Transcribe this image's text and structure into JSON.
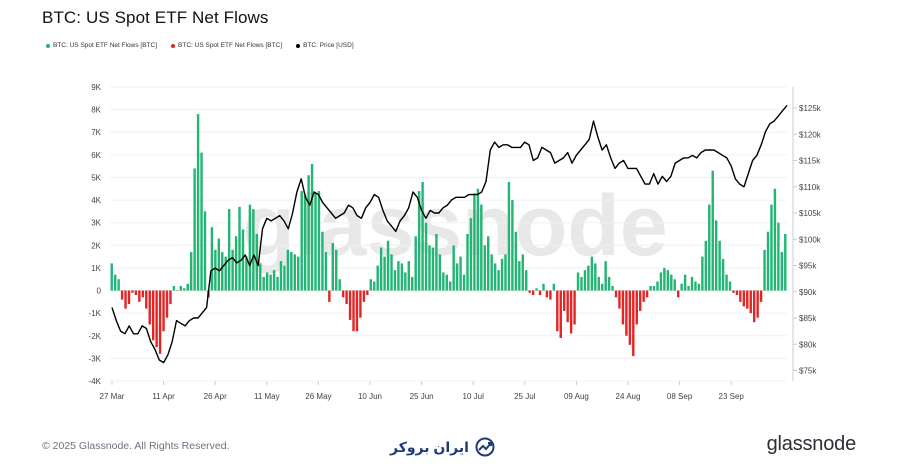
{
  "title": "BTC: US Spot ETF Net Flows",
  "legend": [
    {
      "label": "BTC: US Spot ETF Net Flows [BTC]",
      "color": "#22b573"
    },
    {
      "label": "BTC: US Spot ETF Net Flows [BTC]",
      "color": "#e02626"
    },
    {
      "label": "BTC: Price [USD]",
      "color": "#000000"
    }
  ],
  "watermark": "glassnode",
  "footer": {
    "copyright": "© 2025 Glassnode. All Rights Reserved.",
    "brand": "glassnode",
    "center_brand": "ایران بروکر"
  },
  "chart_data": {
    "type": "bar",
    "colors": {
      "positive": "#22b573",
      "negative": "#e02626",
      "price": "#000000"
    },
    "x_tick_labels": [
      "27 Mar",
      "11 Apr",
      "26 Apr",
      "11 May",
      "26 May",
      "10 Jun",
      "25 Jun",
      "10 Jul",
      "25 Jul",
      "09 Aug",
      "24 Aug",
      "08 Sep",
      "23 Sep"
    ],
    "y_left": {
      "ticks": [
        -4000,
        -3000,
        -2000,
        -1000,
        0,
        1000,
        2000,
        3000,
        4000,
        5000,
        6000,
        7000,
        8000,
        9000
      ],
      "tick_labels": [
        "-4K",
        "-3K",
        "-2K",
        "-1K",
        "0",
        "1K",
        "2K",
        "3K",
        "4K",
        "5K",
        "6K",
        "7K",
        "8K",
        "9K"
      ],
      "range": [
        -4000,
        9000
      ]
    },
    "y_right": {
      "ticks": [
        75000,
        80000,
        85000,
        90000,
        95000,
        100000,
        105000,
        110000,
        115000,
        120000,
        125000
      ],
      "tick_labels": [
        "$75k",
        "$80k",
        "$85k",
        "$90k",
        "$95k",
        "$100k",
        "$105k",
        "$110k",
        "$115k",
        "$120k",
        "$125k"
      ],
      "range": [
        73000,
        129000
      ]
    },
    "series": [
      {
        "type": "bar",
        "values": [
          1200,
          700,
          500,
          -400,
          -800,
          -600,
          -100,
          -200,
          -500,
          -300,
          -800,
          -1500,
          -2200,
          -2500,
          -2800,
          -1800,
          -1200,
          -600,
          200,
          0,
          200,
          100,
          300,
          1700,
          5400,
          7800,
          6100,
          3500,
          -300,
          2800,
          1800,
          2300,
          1700,
          1500,
          3600,
          1800,
          2400,
          3700,
          2700,
          1500,
          3800,
          3600,
          2500,
          1200,
          600,
          800,
          700,
          900,
          600,
          1300,
          1100,
          1800,
          1700,
          1600,
          1500,
          4400,
          4200,
          5100,
          5600,
          4300,
          4400,
          2600,
          1700,
          -500,
          2100,
          1800,
          500,
          -300,
          -600,
          -1300,
          -1800,
          -1800,
          -1200,
          -500,
          -200,
          500,
          400,
          1100,
          1900,
          1500,
          2200,
          1600,
          900,
          1300,
          1200,
          800,
          1300,
          600,
          2400,
          4400,
          4800,
          3000,
          2000,
          1900,
          2500,
          1600,
          800,
          700,
          400,
          2000,
          1200,
          1500,
          700,
          2500,
          3200,
          4300,
          4500,
          3800,
          2000,
          2400,
          1600,
          1200,
          900,
          1400,
          1600,
          4800,
          4000,
          2600,
          1300,
          1600,
          900,
          -100,
          -200,
          100,
          -200,
          300,
          -300,
          -400,
          300,
          -1800,
          -2100,
          -900,
          -1400,
          -1900,
          -1500,
          800,
          600,
          900,
          1100,
          1500,
          1200,
          600,
          300,
          1300,
          600,
          200,
          -300,
          -800,
          -1500,
          -2000,
          -2400,
          -2900,
          -1500,
          -900,
          -500,
          -300,
          200,
          200,
          400,
          800,
          1000,
          900,
          700,
          500,
          -300,
          300,
          700,
          200,
          600,
          400,
          300,
          1500,
          2200,
          3800,
          5300,
          3100,
          2200,
          1400,
          700,
          400,
          -100,
          -200,
          -500,
          -700,
          -800,
          -1000,
          -1400,
          -1200,
          -500,
          1800,
          2600,
          3800,
          4500,
          3000,
          1700,
          2500
        ]
      },
      {
        "type": "line",
        "name": "BTC: Price [USD]",
        "values": [
          87000,
          84500,
          82500,
          82000,
          83500,
          82000,
          82000,
          83500,
          83000,
          80500,
          79000,
          77000,
          76500,
          78000,
          80500,
          84500,
          84000,
          83500,
          84500,
          85000,
          85000,
          86000,
          87000,
          94000,
          94500,
          94000,
          95000,
          96000,
          96500,
          95500,
          96000,
          97000,
          95000,
          97000,
          95000,
          102000,
          104000,
          103500,
          104000,
          104500,
          103500,
          102000,
          105000,
          109000,
          111500,
          108000,
          106500,
          109000,
          108500,
          107000,
          106000,
          105000,
          104000,
          104500,
          105000,
          106500,
          106000,
          104500,
          104000,
          106000,
          107000,
          108500,
          108000,
          105500,
          103500,
          102500,
          101500,
          103500,
          104500,
          106000,
          109000,
          108000,
          105500,
          104000,
          105500,
          105000,
          105000,
          106000,
          106500,
          107500,
          108000,
          108000,
          108000,
          108500,
          108500,
          108500,
          109000,
          111000,
          117000,
          118500,
          117500,
          118000,
          118000,
          117500,
          117500,
          117500,
          118500,
          118000,
          115000,
          115500,
          117500,
          117000,
          116500,
          114500,
          115000,
          115500,
          116500,
          114500,
          116000,
          117000,
          118000,
          119000,
          122500,
          119500,
          117000,
          118000,
          115500,
          113500,
          114500,
          115000,
          113500,
          113500,
          113500,
          112000,
          110500,
          110500,
          112500,
          110500,
          112000,
          111000,
          112000,
          114500,
          115000,
          115500,
          115500,
          116000,
          115500,
          116500,
          117000,
          117000,
          117000,
          116500,
          116000,
          115500,
          114000,
          111500,
          110500,
          110000,
          112500,
          115000,
          116000,
          118000,
          120500,
          122000,
          122500,
          123500,
          124500,
          125500
        ]
      }
    ]
  }
}
